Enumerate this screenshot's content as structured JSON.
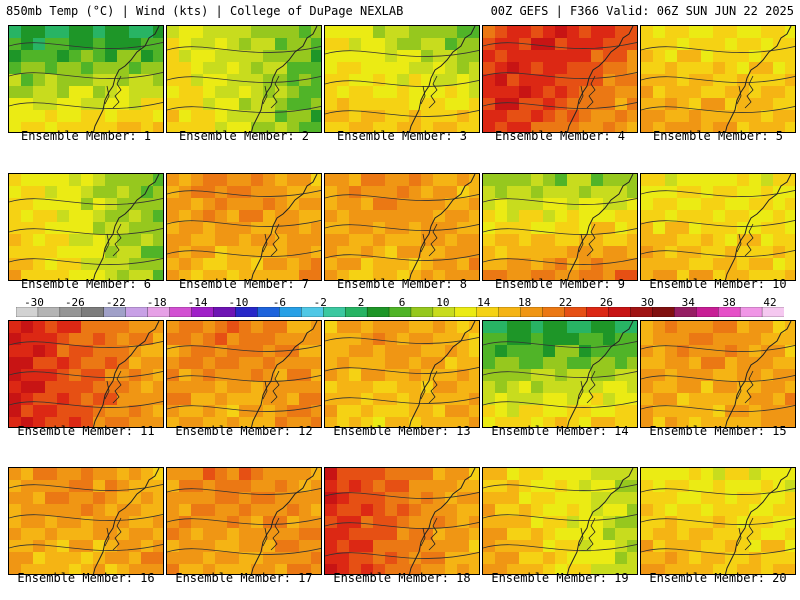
{
  "header": {
    "left": "850mb Temp (°C) | Wind (kts) | College of DuPage NEXLAB",
    "right": "00Z GEFS | F366 Valid: 06Z SUN JUN 22 2025"
  },
  "caption_prefix": "Ensemble Member: ",
  "members": [
    {
      "label": "Ensemble Member: 1",
      "base": 10,
      "tint": "green-north"
    },
    {
      "label": "Ensemble Member: 2",
      "base": 13,
      "tint": "green-east"
    },
    {
      "label": "Ensemble Member: 3",
      "base": 13,
      "tint": "green-ne"
    },
    {
      "label": "Ensemble Member: 4",
      "base": 22,
      "tint": "warm"
    },
    {
      "label": "Ensemble Member: 5",
      "base": 16,
      "tint": "yellow"
    },
    {
      "label": "Ensemble Member: 6",
      "base": 14,
      "tint": "green-east"
    },
    {
      "label": "Ensemble Member: 7",
      "base": 18,
      "tint": "orange"
    },
    {
      "label": "Ensemble Member: 8",
      "base": 18,
      "tint": "orange"
    },
    {
      "label": "Ensemble Member: 9",
      "base": 15,
      "tint": "green-north"
    },
    {
      "label": "Ensemble Member: 10",
      "base": 15,
      "tint": "yellow"
    },
    {
      "label": "Ensemble Member: 11",
      "base": 20,
      "tint": "hot-west"
    },
    {
      "label": "Ensemble Member: 12",
      "base": 19,
      "tint": "orange"
    },
    {
      "label": "Ensemble Member: 13",
      "base": 17,
      "tint": "orange"
    },
    {
      "label": "Ensemble Member: 14",
      "base": 10,
      "tint": "green-north"
    },
    {
      "label": "Ensemble Member: 15",
      "base": 18,
      "tint": "orange"
    },
    {
      "label": "Ensemble Member: 16",
      "base": 18,
      "tint": "orange"
    },
    {
      "label": "Ensemble Member: 17",
      "base": 19,
      "tint": "orange"
    },
    {
      "label": "Ensemble Member: 18",
      "base": 19,
      "tint": "hot-west"
    },
    {
      "label": "Ensemble Member: 19",
      "base": 16,
      "tint": "green-east"
    },
    {
      "label": "Ensemble Member: 20",
      "base": 15,
      "tint": "yellow"
    }
  ],
  "colorbar": {
    "labels": [
      "-30",
      "-26",
      "-22",
      "-18",
      "-14",
      "-10",
      "-6",
      "-2",
      "2",
      "6",
      "10",
      "14",
      "18",
      "22",
      "26",
      "30",
      "34",
      "38",
      "42"
    ],
    "colors": [
      "#d2d2d2",
      "#b4b4b4",
      "#969696",
      "#7d7d7d",
      "#a0a0c8",
      "#c8a0e6",
      "#e6a0e6",
      "#d250d2",
      "#a020c8",
      "#6e14b4",
      "#2828c8",
      "#1e64dc",
      "#28a0e6",
      "#50c8e6",
      "#3cc8a0",
      "#28b464",
      "#1e9628",
      "#50b428",
      "#96c81e",
      "#c8dc1e",
      "#ebeb14",
      "#f5d214",
      "#f5b414",
      "#f09614",
      "#eb7814",
      "#e65014",
      "#dc2814",
      "#c81414",
      "#a01414",
      "#801010",
      "#961e64",
      "#c81e96",
      "#e650c8",
      "#f096e6",
      "#f5c8f0"
    ]
  }
}
